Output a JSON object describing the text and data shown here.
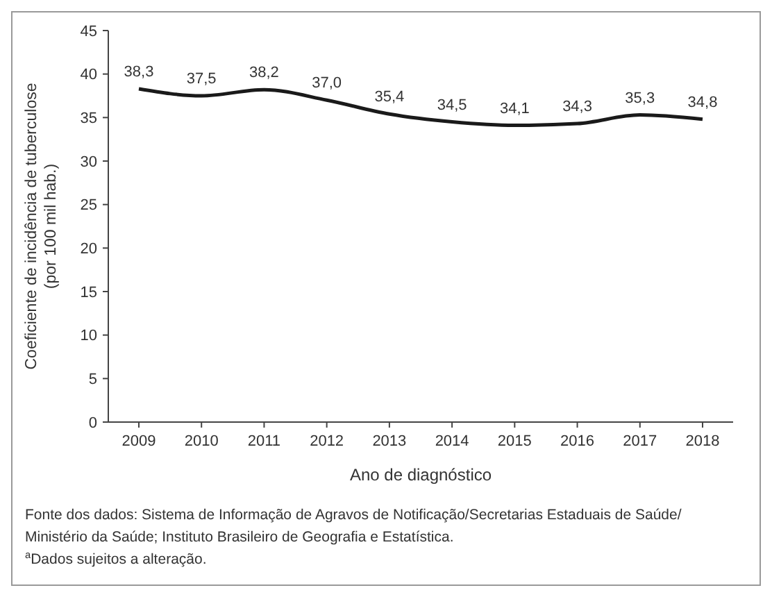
{
  "chart_data": {
    "type": "line",
    "xlabel": "Ano de diagnóstico",
    "ylabel": "Coeficiente de incidência de tuberculose\n(por 100 mil hab.)",
    "categories": [
      "2009",
      "2010",
      "2011",
      "2012",
      "2013",
      "2014",
      "2015",
      "2016",
      "2017",
      "2018"
    ],
    "series": [
      {
        "color": "#1a1a1a",
        "values": [
          38.3,
          37.5,
          38.2,
          37.0,
          35.4,
          34.5,
          34.1,
          34.3,
          35.3,
          34.8
        ],
        "value_labels": [
          "38,3",
          "37,5",
          "38,2",
          "37,0",
          "35,4",
          "34,5",
          "34,1",
          "34,3",
          "35,3",
          "34,8"
        ]
      }
    ],
    "ylim": [
      0,
      45
    ],
    "yticks": [
      0,
      5,
      10,
      15,
      20,
      25,
      30,
      35,
      40,
      45
    ],
    "grid": false,
    "marker": "none",
    "line_style": "solid",
    "annotations": [
      "Fonte dos dados: Sistema de Informação de Agravos de Notificação/Secretarias Estaduais de Saúde/",
      "Ministério da Saúde; Instituto Brasileiro de Geografia e Estatística.",
      "$^{a}$Dados sujeitos a alteração."
    ]
  }
}
